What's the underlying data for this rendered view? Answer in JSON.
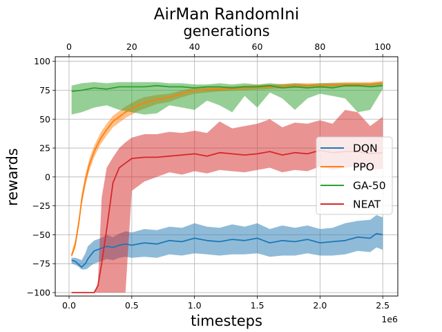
{
  "chart_data": {
    "type": "line",
    "title": "AirMan RandomIni",
    "top_axis_label": "generations",
    "top_xticks": [
      "0",
      "20",
      "40",
      "60",
      "80",
      "100"
    ],
    "top_xlim": [
      -4.4,
      104.8
    ],
    "xlabel": "timesteps",
    "x_scale_text": "1e6",
    "xticks": [
      "0.0",
      "0.5",
      "1.0",
      "1.5",
      "2.0",
      "2.5"
    ],
    "xlim": [
      -0.11,
      2.62
    ],
    "ylabel": "rewards",
    "yticks": [
      "−100",
      "−75",
      "−50",
      "−25",
      "0",
      "25",
      "50",
      "75",
      "100"
    ],
    "ylim": [
      -103,
      104
    ],
    "grid": true,
    "legend_position": "center-right",
    "series": [
      {
        "name": "DQN",
        "color": "#1f77b4",
        "band_color": "#1f77b4",
        "x": [
          0.02,
          0.05,
          0.08,
          0.1,
          0.13,
          0.15,
          0.17,
          0.2,
          0.25,
          0.3,
          0.35,
          0.4,
          0.45,
          0.5,
          0.6,
          0.7,
          0.8,
          0.9,
          1.0,
          1.1,
          1.2,
          1.3,
          1.4,
          1.5,
          1.6,
          1.7,
          1.8,
          1.9,
          2.0,
          2.1,
          2.2,
          2.3,
          2.4,
          2.45,
          2.5
        ],
        "y": [
          -72,
          -73,
          -76,
          -78,
          -75,
          -71,
          -68,
          -64,
          -62,
          -60,
          -61,
          -59,
          -58,
          -59,
          -57,
          -58,
          -55,
          -56,
          -53,
          -55,
          -56,
          -54,
          -55,
          -53,
          -57,
          -55,
          -56,
          -54,
          -57,
          -56,
          -55,
          -52,
          -53,
          -49,
          -50
        ],
        "upper": [
          -70,
          -70,
          -71,
          -72,
          -66,
          -60,
          -58,
          -55,
          -53,
          -50,
          -52,
          -49,
          -47,
          -48,
          -45,
          -46,
          -43,
          -44,
          -40,
          -43,
          -44,
          -41,
          -43,
          -40,
          -45,
          -42,
          -44,
          -42,
          -45,
          -44,
          -40,
          -38,
          -37,
          -33,
          -35
        ],
        "lower": [
          -75,
          -76,
          -78,
          -80,
          -80,
          -79,
          -77,
          -75,
          -73,
          -71,
          -72,
          -70,
          -69,
          -70,
          -69,
          -70,
          -67,
          -68,
          -66,
          -67,
          -68,
          -67,
          -67,
          -66,
          -69,
          -68,
          -68,
          -66,
          -68,
          -68,
          -67,
          -64,
          -65,
          -61,
          -63
        ]
      },
      {
        "name": "PPO",
        "color": "#ff7f0e",
        "band_color": "#ff7f0e",
        "x": [
          0.02,
          0.05,
          0.08,
          0.1,
          0.13,
          0.16,
          0.2,
          0.25,
          0.3,
          0.35,
          0.4,
          0.45,
          0.5,
          0.55,
          0.6,
          0.7,
          0.8,
          0.9,
          1.0,
          1.2,
          1.4,
          1.6,
          1.8,
          2.0,
          2.2,
          2.4,
          2.5
        ],
        "y": [
          -68,
          -58,
          -38,
          -20,
          -3,
          10,
          22,
          33,
          41,
          48,
          52,
          56,
          59,
          62,
          64,
          67,
          69,
          72,
          75,
          76,
          77,
          78,
          79,
          79,
          80,
          80,
          81
        ],
        "upper": [
          -66,
          -54,
          -34,
          -15,
          2,
          15,
          27,
          38,
          46,
          53,
          57,
          61,
          64,
          67,
          69,
          71,
          72,
          75,
          77,
          78,
          79,
          80,
          81,
          81,
          82,
          82,
          83
        ],
        "lower": [
          -70,
          -62,
          -42,
          -25,
          -8,
          5,
          17,
          28,
          36,
          43,
          47,
          51,
          54,
          57,
          59,
          63,
          65,
          69,
          72,
          74,
          75,
          76,
          77,
          77,
          78,
          78,
          79
        ]
      },
      {
        "name": "GA-50",
        "color": "#2ca02c",
        "band_color": "#2ca02c",
        "x": [
          0.02,
          0.1,
          0.2,
          0.3,
          0.4,
          0.5,
          0.6,
          0.7,
          0.8,
          0.9,
          1.0,
          1.1,
          1.2,
          1.3,
          1.4,
          1.5,
          1.6,
          1.7,
          1.8,
          1.9,
          2.0,
          2.1,
          2.2,
          2.3,
          2.4,
          2.5
        ],
        "y": [
          74,
          75,
          77,
          76,
          78,
          78,
          78,
          79,
          78,
          78,
          77,
          78,
          78,
          77,
          78,
          78,
          79,
          77,
          78,
          77,
          78,
          77,
          79,
          79,
          78,
          79
        ],
        "upper": [
          79,
          81,
          82,
          81,
          82,
          82,
          82,
          82,
          81,
          81,
          80,
          80,
          81,
          80,
          81,
          80,
          81,
          80,
          81,
          80,
          81,
          81,
          81,
          81,
          81,
          82
        ],
        "lower": [
          54,
          56,
          60,
          62,
          58,
          56,
          54,
          55,
          62,
          60,
          58,
          66,
          62,
          56,
          70,
          60,
          73,
          68,
          58,
          68,
          72,
          70,
          68,
          56,
          58,
          76
        ]
      },
      {
        "name": "NEAT",
        "color": "#d62728",
        "band_color": "#d62728",
        "x": [
          0.02,
          0.1,
          0.2,
          0.23,
          0.26,
          0.3,
          0.35,
          0.4,
          0.45,
          0.5,
          0.6,
          0.7,
          0.8,
          0.9,
          1.0,
          1.1,
          1.2,
          1.3,
          1.4,
          1.5,
          1.6,
          1.7,
          1.8,
          1.9,
          2.0,
          2.1,
          2.2,
          2.3,
          2.4,
          2.5
        ],
        "y": [
          -100,
          -100,
          -100,
          -94,
          -75,
          -45,
          -5,
          8,
          12,
          16,
          17,
          17,
          18,
          19,
          20,
          18,
          21,
          20,
          19,
          20,
          22,
          19,
          21,
          20,
          23,
          21,
          22,
          22,
          20,
          21
        ],
        "upper": [
          -100,
          -100,
          -100,
          -92,
          -18,
          8,
          17,
          25,
          30,
          34,
          37,
          37,
          39,
          38,
          40,
          38,
          48,
          42,
          44,
          46,
          50,
          43,
          47,
          46,
          49,
          46,
          58,
          56,
          44,
          52
        ],
        "lower": [
          -100,
          -100,
          -100,
          -100,
          -100,
          -100,
          -100,
          -100,
          -100,
          -12,
          -4,
          0,
          4,
          2,
          5,
          3,
          6,
          5,
          4,
          6,
          8,
          4,
          6,
          5,
          9,
          6,
          8,
          9,
          6,
          7
        ]
      }
    ]
  }
}
